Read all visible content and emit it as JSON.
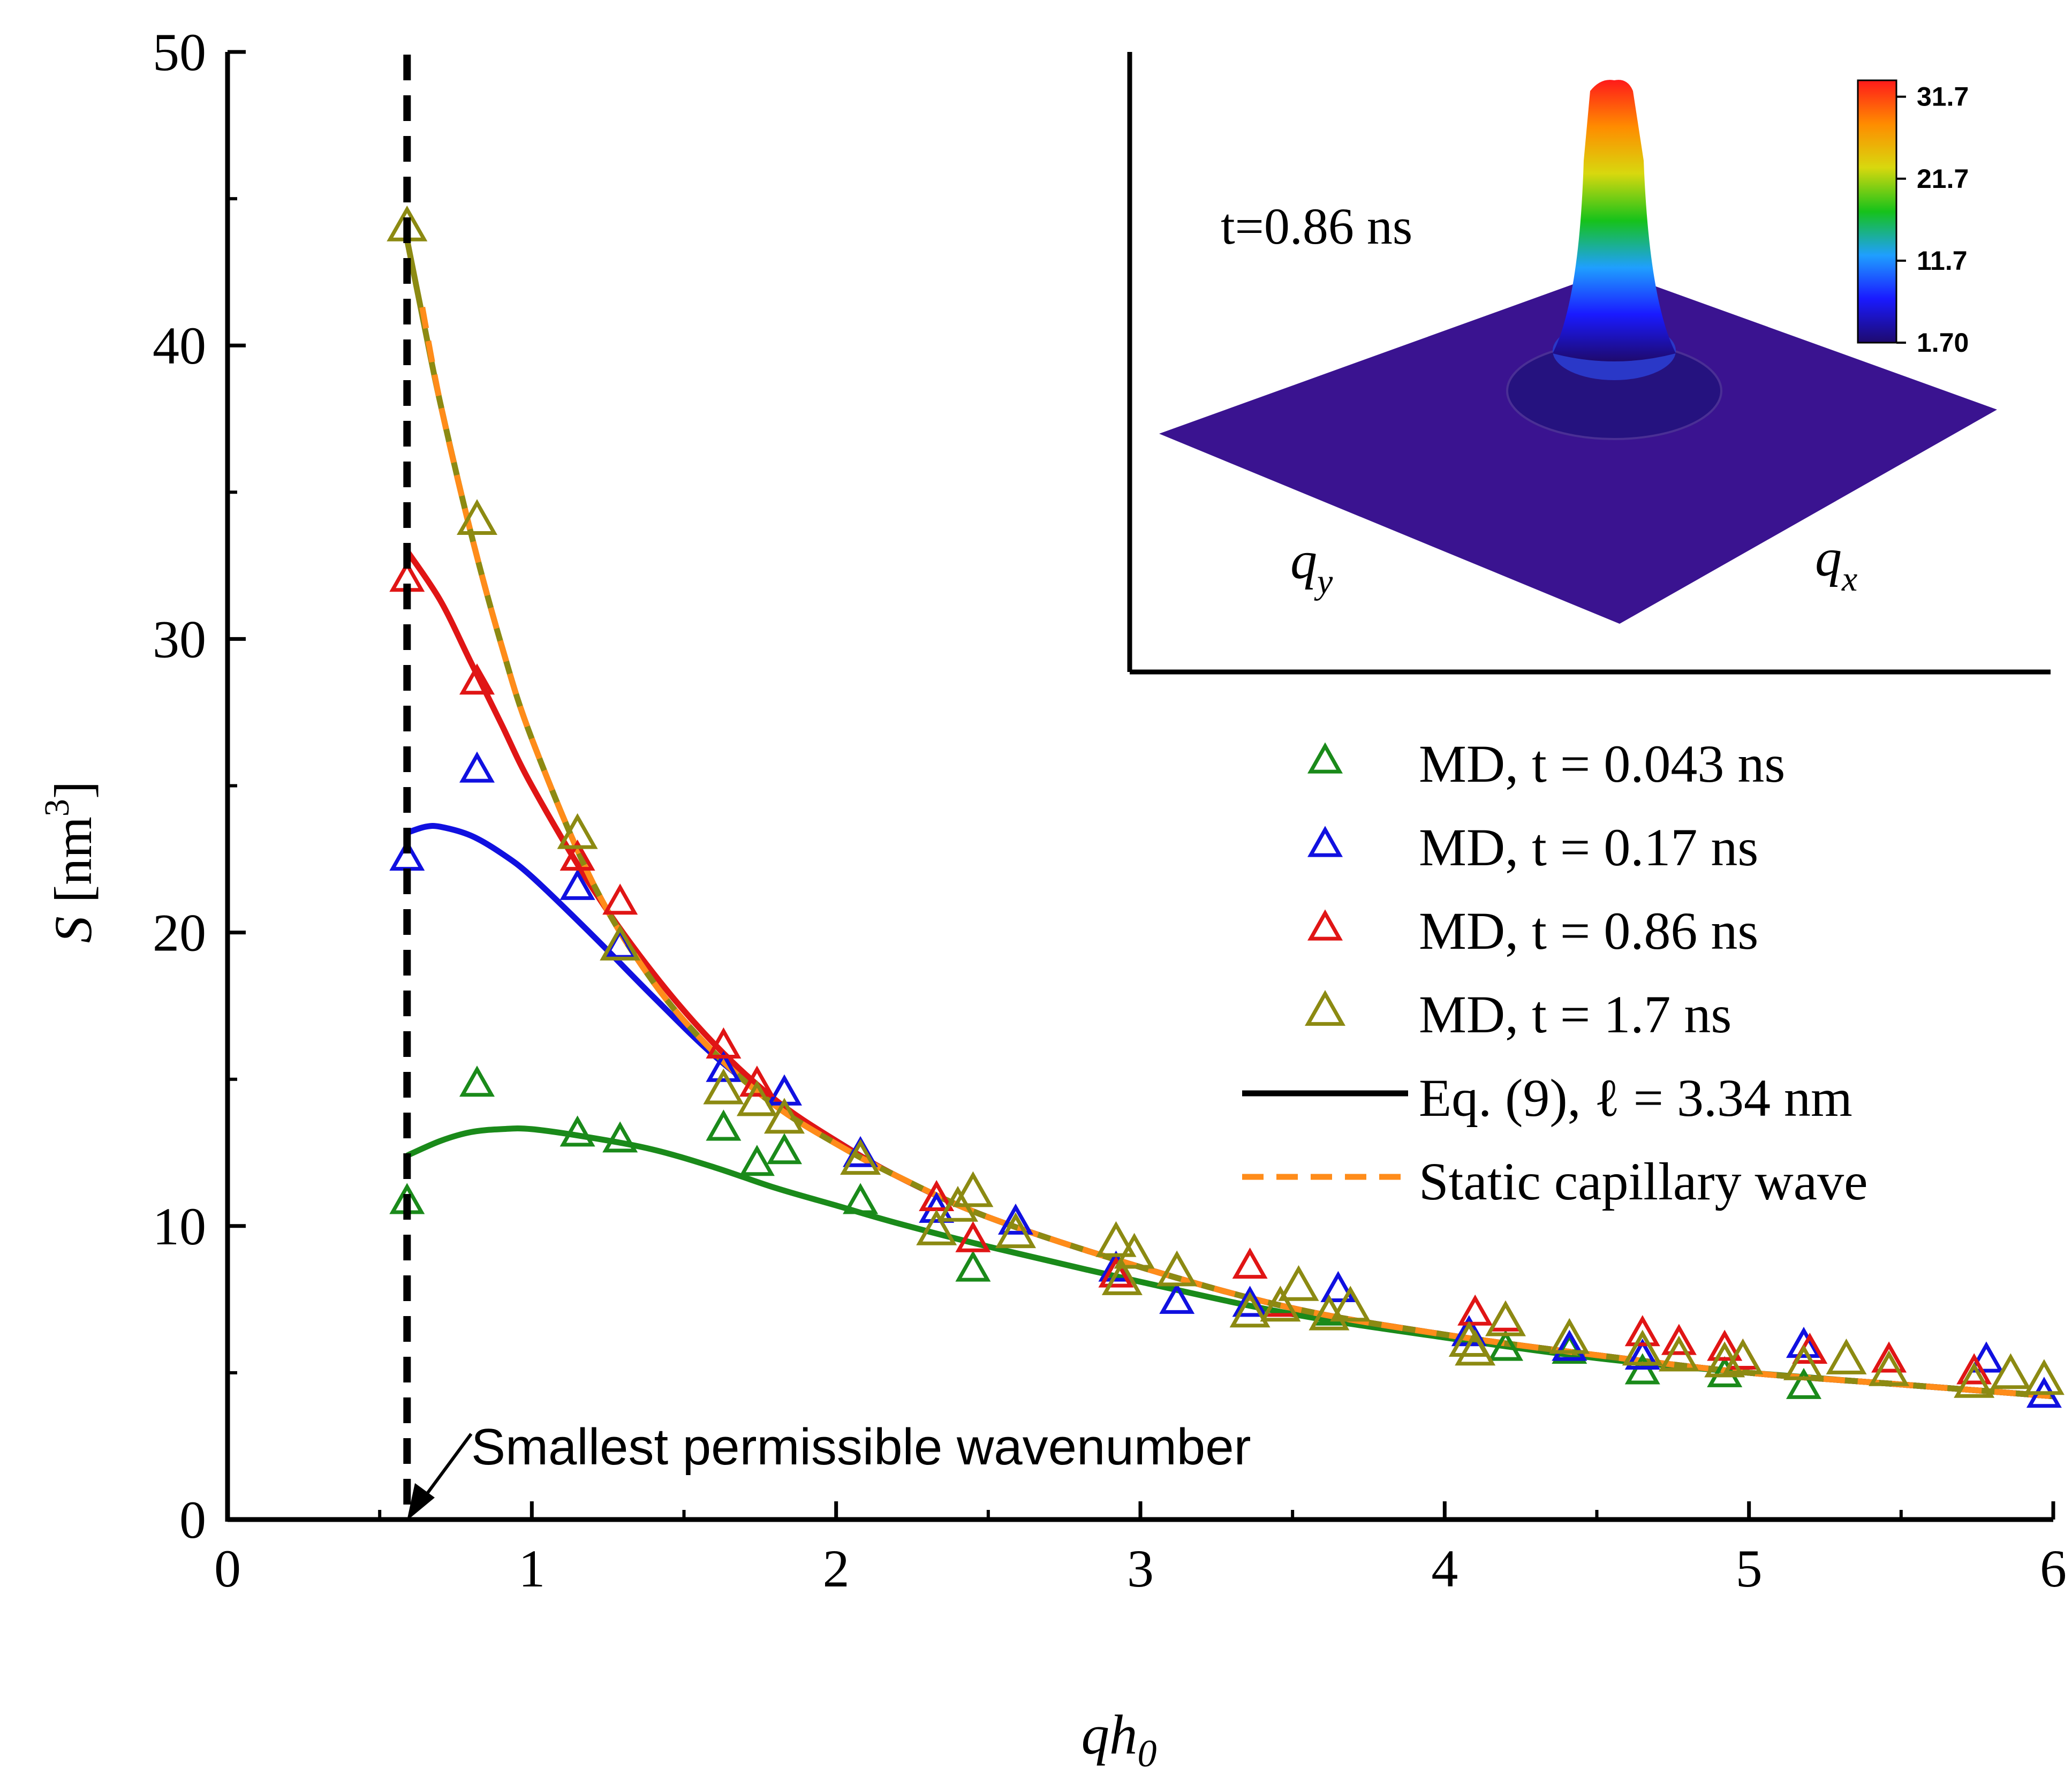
{
  "chart_data": {
    "type": "scatter",
    "xlabel": {
      "main": "qh",
      "sub": "0"
    },
    "ylabel": {
      "main": "S",
      "unit_open": " [nm",
      "unit_sup": "3",
      "unit_close": "]"
    },
    "xlim": [
      0,
      6
    ],
    "ylim": [
      0,
      50
    ],
    "xticks": [
      0,
      1,
      2,
      3,
      4,
      5,
      6
    ],
    "yticks": [
      0,
      10,
      20,
      30,
      40,
      50
    ],
    "vline": {
      "x": 0.59,
      "style": "dashed",
      "color": "#000000"
    },
    "annotation": {
      "text": "Smallest permissible wavenumber",
      "x": 0.59,
      "y": 0
    },
    "series": [
      {
        "name": "MD, t = 0.043 ns",
        "color": "#1a8a1a",
        "points": [
          [
            0.59,
            10.8
          ],
          [
            0.82,
            14.8
          ],
          [
            1.15,
            13.1
          ],
          [
            1.29,
            12.9
          ],
          [
            1.63,
            13.3
          ],
          [
            1.74,
            12.1
          ],
          [
            1.83,
            12.5
          ],
          [
            2.08,
            10.8
          ],
          [
            2.45,
            8.5
          ],
          [
            3.62,
            7.0
          ],
          [
            4.2,
            5.8
          ],
          [
            4.41,
            5.7
          ],
          [
            4.65,
            5.0
          ],
          [
            4.92,
            4.9
          ],
          [
            5.18,
            4.5
          ]
        ]
      },
      {
        "name": "MD, t = 0.17 ns",
        "color": "#1010e0",
        "points": [
          [
            0.59,
            22.5
          ],
          [
            0.82,
            25.5
          ],
          [
            1.15,
            21.5
          ],
          [
            1.29,
            19.5
          ],
          [
            1.63,
            15.3
          ],
          [
            1.83,
            14.5
          ],
          [
            2.08,
            12.4
          ],
          [
            2.33,
            10.5
          ],
          [
            2.59,
            10.1
          ],
          [
            2.92,
            8.5
          ],
          [
            3.12,
            7.4
          ],
          [
            3.36,
            7.3
          ],
          [
            3.65,
            7.8
          ],
          [
            4.08,
            6.3
          ],
          [
            4.41,
            5.8
          ],
          [
            4.65,
            5.5
          ],
          [
            5.18,
            5.9
          ],
          [
            5.78,
            5.4
          ],
          [
            5.97,
            4.2
          ]
        ]
      },
      {
        "name": "MD, t = 0.86 ns",
        "color": "#e01515",
        "points": [
          [
            0.59,
            32.0
          ],
          [
            0.82,
            28.5
          ],
          [
            1.15,
            22.5
          ],
          [
            1.29,
            21.0
          ],
          [
            1.63,
            16.1
          ],
          [
            1.74,
            14.8
          ],
          [
            2.33,
            10.9
          ],
          [
            2.45,
            9.5
          ],
          [
            2.92,
            8.3
          ],
          [
            3.36,
            8.6
          ],
          [
            3.46,
            7.3
          ],
          [
            4.1,
            7.0
          ],
          [
            4.2,
            6.8
          ],
          [
            4.65,
            6.3
          ],
          [
            4.77,
            6.0
          ],
          [
            4.92,
            5.8
          ],
          [
            4.98,
            5.5
          ],
          [
            5.2,
            5.7
          ],
          [
            5.46,
            5.4
          ],
          [
            5.74,
            5.0
          ]
        ]
      },
      {
        "name": "MD, t = 1.7 ns",
        "color": "#8c8a12",
        "points": [
          [
            0.59,
            44.0
          ],
          [
            0.82,
            34.0
          ],
          [
            1.15,
            23.3
          ],
          [
            1.29,
            19.5
          ],
          [
            1.63,
            14.6
          ],
          [
            1.74,
            14.2
          ],
          [
            1.83,
            13.6
          ],
          [
            2.08,
            12.2
          ],
          [
            2.33,
            9.8
          ],
          [
            2.4,
            10.6
          ],
          [
            2.45,
            11.1
          ],
          [
            2.59,
            9.7
          ],
          [
            2.92,
            9.4
          ],
          [
            2.94,
            8.1
          ],
          [
            2.98,
            9.0
          ],
          [
            3.12,
            8.4
          ],
          [
            3.36,
            7.0
          ],
          [
            3.46,
            7.2
          ],
          [
            3.52,
            7.9
          ],
          [
            3.62,
            6.9
          ],
          [
            3.69,
            7.2
          ],
          [
            4.08,
            6.0
          ],
          [
            4.1,
            5.7
          ],
          [
            4.2,
            6.7
          ],
          [
            4.41,
            6.1
          ],
          [
            4.65,
            5.7
          ],
          [
            4.77,
            5.5
          ],
          [
            4.92,
            5.3
          ],
          [
            4.98,
            5.4
          ],
          [
            5.18,
            5.2
          ],
          [
            5.32,
            5.4
          ],
          [
            5.46,
            5.0
          ],
          [
            5.74,
            4.6
          ],
          [
            5.86,
            4.9
          ],
          [
            5.97,
            4.7
          ]
        ]
      }
    ],
    "curves": [
      {
        "name": "Eq. (9), ℓ = 3.34 nm",
        "ref_series": "MD, t = 0.043 ns",
        "color": "#1a8a1a",
        "style": "solid",
        "x": [
          0.59,
          0.7,
          0.8,
          0.9,
          1.0,
          1.2,
          1.4,
          1.6,
          1.8,
          2.0,
          2.2,
          2.5,
          3.0,
          3.5,
          4.0,
          4.5,
          5.0,
          5.5,
          6.0
        ],
        "y": [
          12.4,
          12.9,
          13.2,
          13.3,
          13.3,
          13.0,
          12.6,
          12.0,
          11.3,
          10.7,
          10.1,
          9.3,
          8.1,
          7.0,
          6.2,
          5.5,
          5.0,
          4.6,
          4.2
        ]
      },
      {
        "name": "Eq. (9), ℓ = 3.34 nm",
        "ref_series": "MD, t = 0.17 ns",
        "color": "#1010e0",
        "style": "solid",
        "x": [
          0.59,
          0.65,
          0.7,
          0.8,
          0.9,
          1.0,
          1.2,
          1.4,
          1.6,
          1.8,
          2.0,
          2.2,
          2.5,
          3.0,
          3.5,
          4.0,
          4.5,
          5.0,
          5.5,
          6.0
        ],
        "y": [
          23.4,
          23.6,
          23.6,
          23.3,
          22.7,
          21.9,
          19.9,
          17.8,
          15.8,
          14.2,
          12.9,
          11.7,
          10.3,
          8.6,
          7.2,
          6.3,
          5.6,
          5.0,
          4.6,
          4.2
        ]
      },
      {
        "name": "Eq. (9), ℓ = 3.34 nm",
        "ref_series": "MD, t = 0.86 ns",
        "color": "#e01515",
        "style": "solid",
        "x": [
          0.59,
          0.7,
          0.8,
          0.9,
          1.0,
          1.2,
          1.4,
          1.6,
          1.8,
          2.0,
          2.2,
          2.5,
          3.0,
          3.5,
          4.0,
          4.5,
          5.0,
          5.5,
          6.0
        ],
        "y": [
          33.0,
          31.3,
          29.2,
          27.1,
          25.0,
          21.5,
          18.6,
          16.2,
          14.3,
          12.9,
          11.7,
          10.3,
          8.6,
          7.2,
          6.3,
          5.6,
          5.0,
          4.6,
          4.2
        ]
      },
      {
        "name": "Eq. (9), ℓ = 3.34 nm",
        "ref_series": "MD, t = 1.7 ns",
        "color": "#8c8a12",
        "style": "solid",
        "x": [
          0.59,
          0.65,
          0.7,
          0.8,
          0.9,
          1.0,
          1.2,
          1.4,
          1.6,
          1.8,
          2.0,
          2.2,
          2.5,
          3.0,
          3.5,
          4.0,
          4.5,
          5.0,
          5.5,
          6.0
        ],
        "y": [
          43.6,
          40.5,
          38.0,
          33.6,
          29.8,
          26.6,
          21.7,
          18.3,
          15.9,
          14.1,
          12.8,
          11.7,
          10.3,
          8.6,
          7.2,
          6.3,
          5.6,
          5.0,
          4.6,
          4.2
        ]
      },
      {
        "name": "Static capillary wave",
        "color": "#ff8c1a",
        "style": "dashed",
        "x": [
          0.64,
          0.7,
          0.8,
          0.9,
          1.0,
          1.2,
          1.4,
          1.6,
          1.8,
          2.0,
          2.2,
          2.5,
          3.0,
          3.5,
          4.0,
          4.5,
          5.0,
          5.5,
          6.0
        ],
        "y": [
          41.3,
          38.0,
          33.6,
          29.8,
          26.6,
          21.7,
          18.3,
          15.9,
          14.1,
          12.8,
          11.7,
          10.3,
          8.6,
          7.2,
          6.3,
          5.6,
          5.0,
          4.6,
          4.2
        ]
      }
    ],
    "legend": {
      "position": "right-middle",
      "entries": [
        {
          "label": "MD, t = 0.043 ns",
          "marker": "triangle",
          "color": "#1a8a1a"
        },
        {
          "label": "MD, t = 0.17 ns",
          "marker": "triangle",
          "color": "#1010e0"
        },
        {
          "label": "MD, t = 0.86 ns",
          "marker": "triangle",
          "color": "#e01515"
        },
        {
          "label": "MD, t = 1.7 ns",
          "marker": "triangle",
          "color": "#8c8a12"
        },
        {
          "label": "Eq. (9), ℓ = 3.34 nm",
          "marker": "line",
          "color": "#000000"
        },
        {
          "label": "Static capillary wave",
          "marker": "dashed-line",
          "color": "#ff8c1a"
        }
      ]
    },
    "inset": {
      "position": "top-right",
      "type": "surface-3d",
      "time_label": "t=0.86 ns",
      "axis_labels": {
        "qy_main": "q",
        "qy_sub": "y",
        "qx_main": "q",
        "qx_sub": "x"
      },
      "colorbar": {
        "ticks": [
          "31.7",
          "21.7",
          "11.7",
          "1.70"
        ],
        "values": [
          31.7,
          21.7,
          11.7,
          1.7
        ],
        "range": [
          1.7,
          33.7
        ],
        "colors": [
          "#1e0a6e",
          "#1a1aff",
          "#1f9fff",
          "#16c21a",
          "#d8d80e",
          "#ff8c00",
          "#ff1a1a"
        ]
      }
    }
  }
}
